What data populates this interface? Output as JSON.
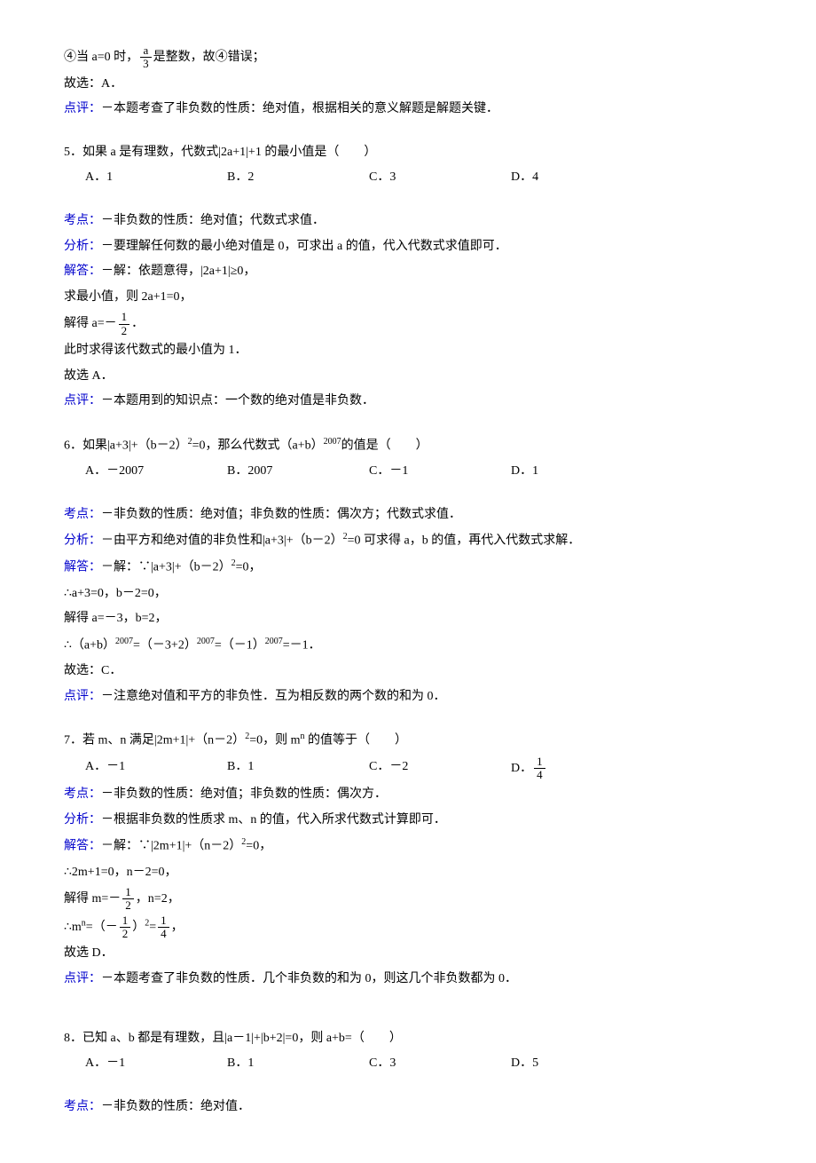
{
  "q4": {
    "line1_pre": "④当 a=0 时，",
    "frac_num": "a",
    "frac_den": "3",
    "line1_post": "是整数，故④错误；",
    "conclusion": "故选：A．",
    "dp_label": "点评：",
    "dp_text": "－本题考查了非负数的性质：绝对值，根据相关的意义解题是解题关键．"
  },
  "q5": {
    "stem": "5．如果 a 是有理数，代数式|2a+1|+1 的最小值是（　　）",
    "choices": {
      "a": "A．1",
      "b": "B．2",
      "c": "C．3",
      "d": "D．4"
    },
    "kd_label": "考点：",
    "kd_text": "－非负数的性质：绝对值；代数式求值．",
    "fx_label": "分析：",
    "fx_text": "－要理解任何数的最小绝对值是 0，可求出 a 的值，代入代数式求值即可．",
    "jd_label": "解答：",
    "jd_text": "－解：依题意得，|2a+1|≥0，",
    "sol1": "求最小值，则 2a+1=0，",
    "sol2_pre": "解得 a=－",
    "frac_num": "1",
    "frac_den": "2",
    "sol2_post": "．",
    "sol3": "此时求得该代数式的最小值为 1．",
    "conclusion": "故选 A．",
    "dp_label": "点评：",
    "dp_text": "－本题用到的知识点：一个数的绝对值是非负数．"
  },
  "q6": {
    "stem_pre": "6．如果|a+3|+（b－2）",
    "stem_sup1": "2",
    "stem_mid": "=0，那么代数式（a+b）",
    "stem_sup2": "2007",
    "stem_post": "的值是（　　）",
    "choices": {
      "a": "A．－2007",
      "b": "B．2007",
      "c": "C．－1",
      "d": "D．1"
    },
    "kd_label": "考点：",
    "kd_text": "－非负数的性质：绝对值；非负数的性质：偶次方；代数式求值．",
    "fx_label": "分析：",
    "fx_pre": "－由平方和绝对值的非负性和|a+3|+（b－2）",
    "fx_sup": "2",
    "fx_post": "=0 可求得 a，b 的值，再代入代数式求解．",
    "jd_label": "解答：",
    "jd_pre": "－解：∵|a+3|+（b－2）",
    "jd_sup": "2",
    "jd_post": "=0，",
    "sol1": "∴a+3=0，b－2=0，",
    "sol2": "解得 a=－3，b=2，",
    "sol3_pre": "∴（a+b）",
    "sol3_s1": "2007",
    "sol3_m1": "=（－3+2）",
    "sol3_s2": "2007",
    "sol3_m2": "=（－1）",
    "sol3_s3": "2007",
    "sol3_post": "=－1．",
    "conclusion": "故选：C．",
    "dp_label": "点评：",
    "dp_text": "－注意绝对值和平方的非负性．互为相反数的两个数的和为 0．"
  },
  "q7": {
    "stem_pre": "7．若 m、n 满足|2m+1|+（n－2）",
    "stem_sup": "2",
    "stem_mid": "=0，则 m",
    "stem_sup2": "n",
    "stem_post": " 的值等于（　　）",
    "choices": {
      "a": "A．－1",
      "b": "B．1",
      "c": "C．－2",
      "d_pre": "D．",
      "d_num": "1",
      "d_den": "4"
    },
    "kd_label": "考点：",
    "kd_text": "－非负数的性质：绝对值；非负数的性质：偶次方．",
    "fx_label": "分析：",
    "fx_text": "－根据非负数的性质求 m、n 的值，代入所求代数式计算即可．",
    "jd_label": "解答：",
    "jd_pre": "－解：∵|2m+1|+（n－2）",
    "jd_sup": "2",
    "jd_post": "=0，",
    "sol1": "∴2m+1=0，n－2=0，",
    "sol2_pre": "解得 m=－",
    "sol2_num": "1",
    "sol2_den": "2",
    "sol2_post": "，n=2，",
    "sol3_pre": "∴m",
    "sol3_sup": "n",
    "sol3_m1": "=（－",
    "sol3_num1": "1",
    "sol3_den1": "2",
    "sol3_m2": "）",
    "sol3_sup2": "2",
    "sol3_m3": "=",
    "sol3_num2": "1",
    "sol3_den2": "4",
    "sol3_post": "，",
    "conclusion": "故选 D．",
    "dp_label": "点评：",
    "dp_text": "－本题考查了非负数的性质．几个非负数的和为 0，则这几个非负数都为 0．"
  },
  "q8": {
    "stem": "8．已知 a、b 都是有理数，且|a－1|+|b+2|=0，则 a+b=（　　）",
    "choices": {
      "a": "A．－1",
      "b": "B．1",
      "c": "C．3",
      "d": "D．5"
    },
    "kd_label": "考点：",
    "kd_text": "－非负数的性质：绝对值．"
  }
}
